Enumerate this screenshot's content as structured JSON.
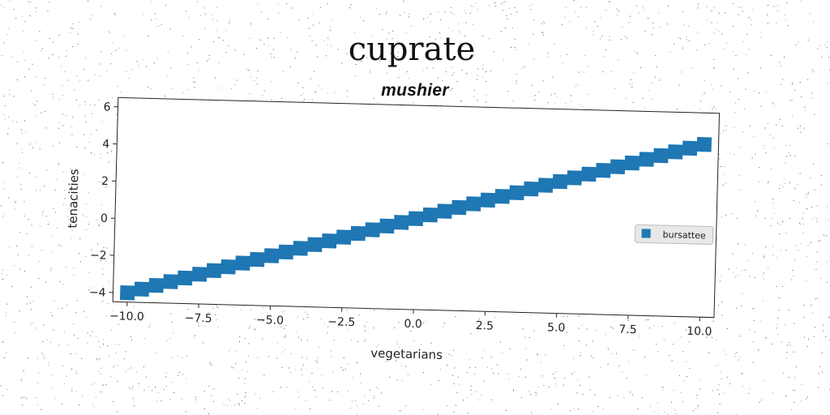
{
  "title": "cuprate",
  "subtitle": "mushier",
  "colors": {
    "series": "#1f77b4",
    "background": "#ffffff",
    "axes": "#222222"
  },
  "chart_data": {
    "type": "scatter",
    "marker": "square",
    "xlabel": "vegetarians",
    "ylabel": "tenacities",
    "xlim": [
      -10.5,
      10.5
    ],
    "ylim": [
      -4.5,
      6.5
    ],
    "xticks": [
      -10.0,
      -7.5,
      -5.0,
      -2.5,
      0.0,
      2.5,
      5.0,
      7.5,
      10.0
    ],
    "xtick_labels": [
      "−10.0",
      "−7.5",
      "−5.0",
      "−2.5",
      "0.0",
      "2.5",
      "5.0",
      "7.5",
      "10.0"
    ],
    "yticks": [
      -4,
      -2,
      0,
      2,
      4,
      6
    ],
    "ytick_labels": [
      "−4",
      "−2",
      "0",
      "2",
      "4",
      "6"
    ],
    "grid": false,
    "legend_position": "center-right",
    "series": [
      {
        "name": "bursattee",
        "x": [
          -10.0,
          -9.5,
          -9.0,
          -8.5,
          -8.0,
          -7.5,
          -7.0,
          -6.5,
          -6.0,
          -5.5,
          -5.0,
          -4.5,
          -4.0,
          -3.5,
          -3.0,
          -2.5,
          -2.0,
          -1.5,
          -1.0,
          -0.5,
          0.0,
          0.5,
          1.0,
          1.5,
          2.0,
          2.5,
          3.0,
          3.5,
          4.0,
          4.5,
          5.0,
          5.5,
          6.0,
          6.5,
          7.0,
          7.5,
          8.0,
          8.5,
          9.0,
          9.5,
          10.0
        ],
        "y": [
          -4.0,
          -3.78,
          -3.56,
          -3.34,
          -3.12,
          -2.9,
          -2.68,
          -2.46,
          -2.24,
          -2.02,
          -1.8,
          -1.58,
          -1.36,
          -1.14,
          -0.92,
          -0.7,
          -0.48,
          -0.26,
          -0.04,
          0.18,
          0.4,
          0.62,
          0.84,
          1.06,
          1.28,
          1.5,
          1.72,
          1.94,
          2.16,
          2.38,
          2.6,
          2.82,
          3.04,
          3.26,
          3.48,
          3.7,
          3.92,
          4.14,
          4.36,
          4.58,
          4.8
        ]
      }
    ]
  }
}
